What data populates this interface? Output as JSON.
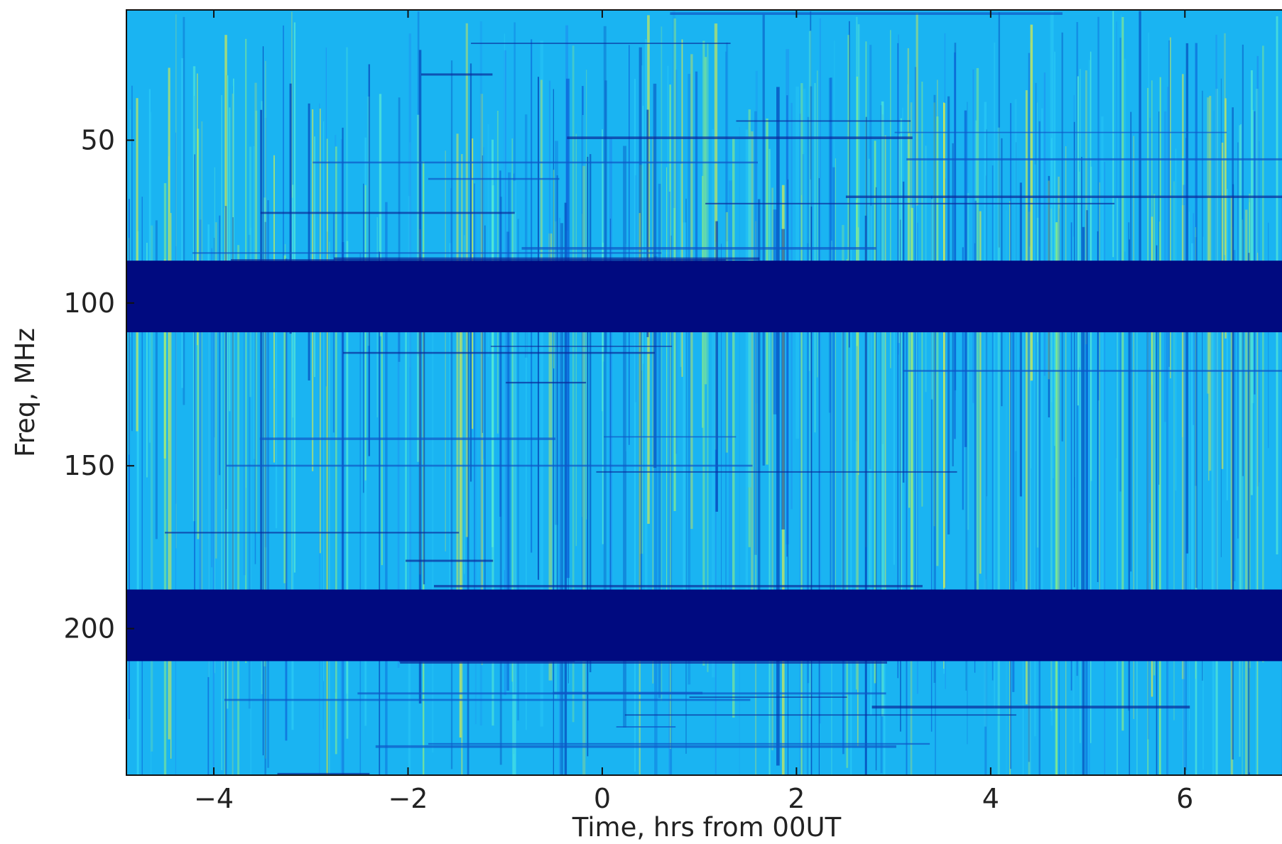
{
  "chart_data": {
    "type": "heatmap",
    "title": "",
    "xlabel": "Time, hrs from 00UT",
    "ylabel": "Freq, MHz",
    "xlim": [
      -4.9,
      7.0
    ],
    "ylim": [
      245,
      10
    ],
    "y_inverted": true,
    "xticks": [
      -4,
      -2,
      0,
      2,
      4,
      6
    ],
    "xtick_labels": [
      "−4",
      "−2",
      "0",
      "2",
      "4",
      "6"
    ],
    "yticks": [
      50,
      100,
      150,
      200
    ],
    "ytick_labels": [
      "50",
      "100",
      "150",
      "200"
    ],
    "colormap": "jet",
    "masked_bands_mhz": [
      [
        87,
        109
      ],
      [
        188,
        210
      ]
    ],
    "masked_color": "#000a80",
    "background_color": "#1ab4f2",
    "grid": false,
    "legend": "none"
  }
}
